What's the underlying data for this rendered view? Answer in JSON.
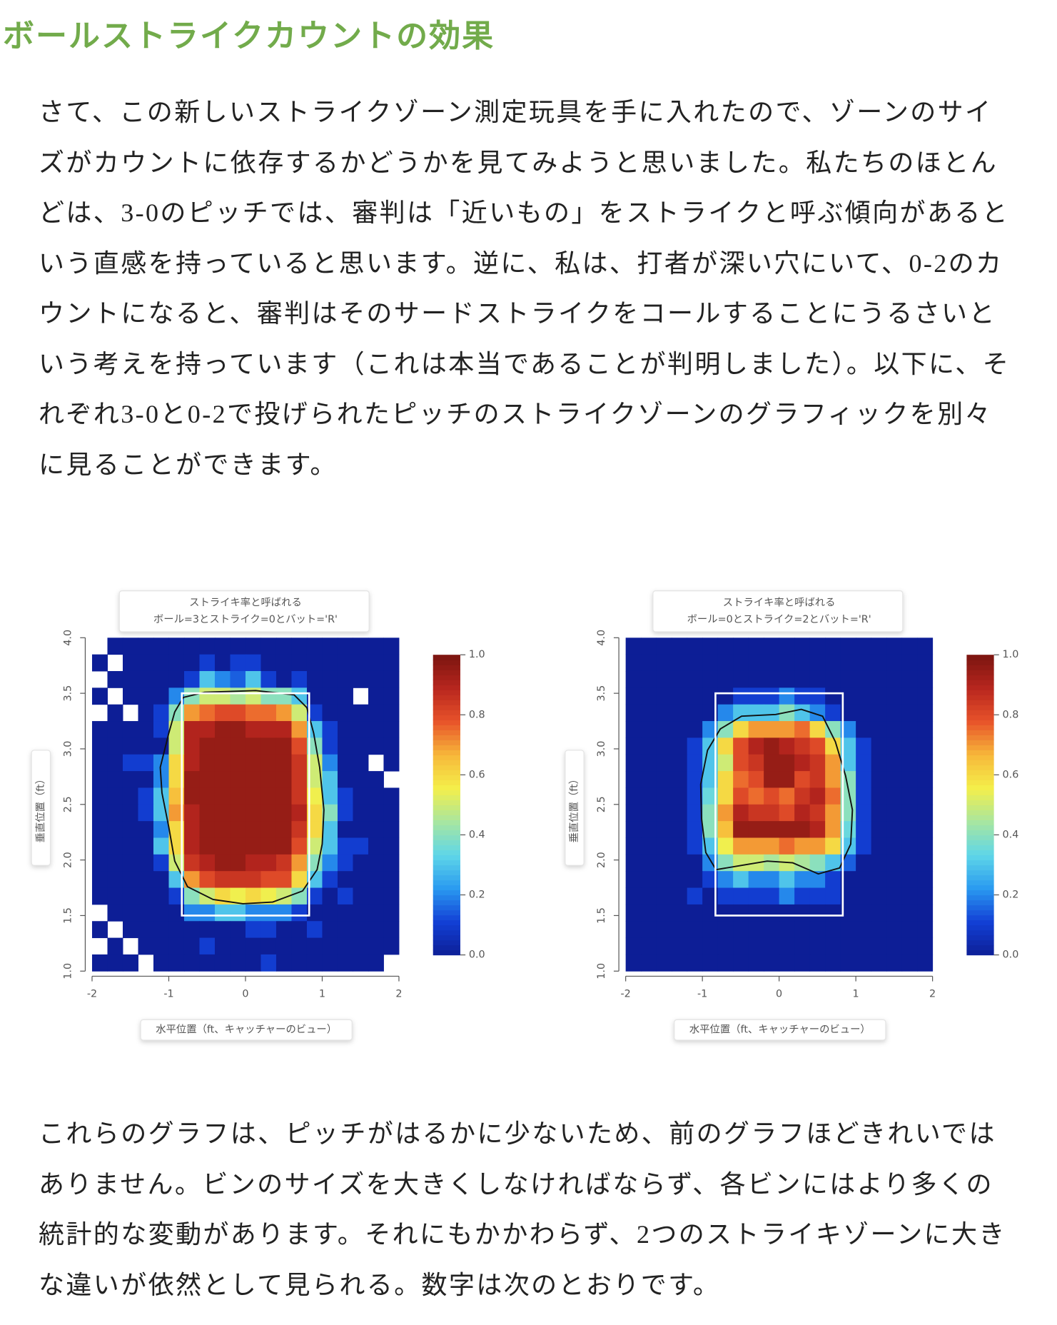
{
  "header": {
    "title": "ボールストライクカウントの効果"
  },
  "paragraphs": [
    "さて、この新しいストライクゾーン測定玩具を手に入れたので、ゾーンのサイズがカウントに依存するかどうかを見てみようと思いました。私たちのほとんどは、3-0のピッチでは、審判は「近いもの」をストライクと呼ぶ傾向があるという直感を持っていると思います。逆に、私は、打者が深い穴にいて、0-2のカウントになると、審判はそのサードストライクをコールすることにうるさいという考えを持っています（これは本当であることが判明しました）。以下に、それぞれ3-0と0-2で投げられたピッチのストライクゾーンのグラフィックを別々に見ることができます。",
    "これらのグラフは、ピッチがはるかに少ないため、前のグラフほどきれいではありません。ビンのサイズを大きくしなければならず、各ビンにはより多くの統計的な変動があります。それにもかかわらず、2つのストライキゾーンに大きな違いが依然として見られる。数字は次のとおりです。"
  ],
  "chart_data": [
    {
      "type": "heatmap",
      "title": "ストライキ率と呼ばれる",
      "subtitle": "ボール=3とストライク=0とバット='R'",
      "x_label": "水平位置（ft、キャッチャーのビュー）",
      "y_label": "垂直位置（ft）",
      "xlim": [
        -2,
        2
      ],
      "ylim": [
        1,
        4
      ],
      "xticks": [
        -2,
        -1,
        0,
        1,
        2
      ],
      "yticks": [
        {
          "value": 1,
          "label": "1.0"
        },
        1.5,
        {
          "value": 2,
          "label": "2.0"
        },
        2.5,
        {
          "value": 3,
          "label": "3.0"
        },
        3.5,
        {
          "value": 4,
          "label": "4.0"
        }
      ],
      "zlim": [
        0,
        1
      ],
      "zticks": [
        {
          "value": 0,
          "label": "0.0"
        },
        0.2,
        0.4,
        0.6,
        0.8,
        {
          "value": 1,
          "label": "1.0"
        }
      ],
      "colorscale": [
        "#0d1e96",
        "#1240d6",
        "#2a9af0",
        "#5fd6e8",
        "#a8e6a0",
        "#f4ef4a",
        "#f7b83a",
        "#e8532a",
        "#b8261e",
        "#7a1510"
      ],
      "strike_zone": {
        "x": [
          -0.83,
          0.83
        ],
        "y": [
          1.5,
          3.5
        ]
      },
      "z": [
        [
          null,
          0,
          0,
          0,
          0,
          0,
          0,
          0,
          0,
          0,
          0,
          0,
          0,
          0,
          0,
          0,
          0,
          0,
          0,
          0
        ],
        [
          0,
          null,
          0,
          0,
          0,
          0,
          0,
          0.1,
          0,
          0.1,
          0.1,
          0,
          0,
          0,
          0,
          0,
          0,
          0,
          0,
          0
        ],
        [
          null,
          0,
          0,
          0,
          0,
          0,
          0.1,
          0.3,
          0.2,
          0.15,
          0.3,
          0.1,
          0,
          0.1,
          0,
          0,
          0,
          0,
          0,
          0
        ],
        [
          0,
          null,
          0,
          0,
          0,
          0.2,
          0.4,
          0.5,
          0.5,
          0.45,
          0.5,
          0.4,
          0.4,
          0.3,
          0,
          0,
          0,
          null,
          0,
          0
        ],
        [
          null,
          0,
          null,
          0,
          0.1,
          0.4,
          0.7,
          0.75,
          0.8,
          0.8,
          0.75,
          0.75,
          0.7,
          0.5,
          0.1,
          0,
          0,
          0,
          0,
          0
        ],
        [
          0,
          0,
          0,
          0,
          0.1,
          0.5,
          0.9,
          0.9,
          0.95,
          0.95,
          0.9,
          0.9,
          0.9,
          0.7,
          0.3,
          0.1,
          0,
          0,
          0,
          0
        ],
        [
          0,
          0,
          0,
          0,
          0,
          0.5,
          0.9,
          0.95,
          0.95,
          0.95,
          0.95,
          0.95,
          0.95,
          0.8,
          0.4,
          0.1,
          0,
          0,
          0,
          0
        ],
        [
          0,
          0,
          0.1,
          0.1,
          0.2,
          0.6,
          0.9,
          0.95,
          0.95,
          0.95,
          0.95,
          0.95,
          0.95,
          0.85,
          0.5,
          0.2,
          0,
          0,
          null,
          0
        ],
        [
          0,
          0,
          0,
          0,
          0.2,
          0.6,
          0.95,
          0.95,
          0.95,
          0.95,
          0.95,
          0.95,
          0.95,
          0.85,
          0.5,
          0.3,
          0,
          0,
          0,
          null
        ],
        [
          0,
          0,
          0,
          0.1,
          0.3,
          0.65,
          0.95,
          0.95,
          0.95,
          0.95,
          0.95,
          0.95,
          0.95,
          0.85,
          0.55,
          0.3,
          0.1,
          0,
          0,
          0
        ],
        [
          0,
          0,
          0,
          0.1,
          0.3,
          0.7,
          0.9,
          0.95,
          0.95,
          0.95,
          0.95,
          0.95,
          0.95,
          0.9,
          0.6,
          0.4,
          0.1,
          0,
          0,
          0
        ],
        [
          0,
          0,
          0,
          0,
          0.2,
          0.6,
          0.9,
          0.95,
          0.95,
          0.95,
          0.95,
          0.95,
          0.95,
          0.85,
          0.6,
          0.3,
          0,
          0,
          0,
          0
        ],
        [
          0,
          0,
          0,
          0,
          0.3,
          0.6,
          0.9,
          0.95,
          0.95,
          0.95,
          0.95,
          0.95,
          0.95,
          0.8,
          0.5,
          0.3,
          0.1,
          0.1,
          0,
          0
        ],
        [
          0,
          0,
          0,
          0,
          0.1,
          0.5,
          0.85,
          0.9,
          0.95,
          0.95,
          0.9,
          0.9,
          0.85,
          0.7,
          0.4,
          0.2,
          0.1,
          0,
          0,
          0
        ],
        [
          0,
          0,
          0,
          0,
          0,
          0.3,
          0.7,
          0.8,
          0.85,
          0.85,
          0.85,
          0.8,
          0.8,
          0.6,
          0.3,
          0.1,
          0,
          0,
          0,
          0
        ],
        [
          0,
          0,
          0,
          0,
          0,
          0.1,
          0.4,
          0.5,
          0.6,
          0.55,
          0.6,
          0.55,
          0.5,
          0.4,
          0.1,
          0,
          0.1,
          0,
          0,
          0
        ],
        [
          null,
          0,
          0,
          0,
          0,
          0,
          0.2,
          0.2,
          0.3,
          0.3,
          0.2,
          0.2,
          0.2,
          0.1,
          0,
          0,
          0,
          0,
          0,
          0
        ],
        [
          0,
          null,
          0,
          0,
          0,
          0,
          0,
          0,
          0,
          0,
          0.1,
          0.1,
          0,
          0,
          0.1,
          0,
          0,
          0,
          0,
          0
        ],
        [
          null,
          0,
          null,
          0,
          0,
          0,
          0,
          0.1,
          0,
          0,
          0,
          0,
          0,
          0,
          0,
          0,
          0,
          0,
          0,
          0
        ],
        [
          0,
          0,
          0,
          null,
          0,
          0,
          0,
          0,
          0,
          0,
          0,
          0.1,
          0,
          0,
          0,
          0,
          0,
          0,
          0,
          null
        ]
      ]
    },
    {
      "type": "heatmap",
      "title": "ストライキ率と呼ばれる",
      "subtitle": "ボール=0とストライク=2とバット='R'",
      "x_label": "水平位置（ft、キャッチャーのビュー）",
      "y_label": "垂直位置（ft）",
      "xlim": [
        -2,
        2
      ],
      "ylim": [
        1,
        4
      ],
      "xticks": [
        -2,
        -1,
        0,
        1,
        2
      ],
      "yticks": [
        {
          "value": 1,
          "label": "1.0"
        },
        1.5,
        {
          "value": 2,
          "label": "2.0"
        },
        2.5,
        {
          "value": 3,
          "label": "3.0"
        },
        3.5,
        {
          "value": 4,
          "label": "4.0"
        }
      ],
      "zlim": [
        0,
        1
      ],
      "zticks": [
        {
          "value": 0,
          "label": "0.0"
        },
        0.2,
        0.4,
        0.6,
        0.8,
        {
          "value": 1,
          "label": "1.0"
        }
      ],
      "colorscale": [
        "#0d1e96",
        "#1240d6",
        "#2a9af0",
        "#5fd6e8",
        "#a8e6a0",
        "#f4ef4a",
        "#f7b83a",
        "#e8532a",
        "#b8261e",
        "#7a1510"
      ],
      "strike_zone": {
        "x": [
          -0.83,
          0.83
        ],
        "y": [
          1.5,
          3.5
        ]
      },
      "z": [
        [
          0,
          0,
          0,
          0,
          0,
          0,
          0,
          0,
          0,
          0,
          0,
          0,
          0,
          0,
          0,
          0,
          0,
          0,
          0,
          0
        ],
        [
          0,
          0,
          0,
          0,
          0,
          0,
          0,
          0,
          0,
          0,
          0,
          0,
          0,
          0,
          0,
          0,
          0,
          0,
          0,
          0
        ],
        [
          0,
          0,
          0,
          0,
          0,
          0,
          0,
          0,
          0,
          0,
          0,
          0,
          0,
          0,
          0,
          0,
          0,
          0,
          0,
          0
        ],
        [
          0,
          0,
          0,
          0,
          0,
          0,
          0,
          0.1,
          0.1,
          0.1,
          0.2,
          0.1,
          0.1,
          0,
          0,
          0,
          0,
          0,
          0,
          0
        ],
        [
          0,
          0,
          0,
          0,
          0,
          0,
          0.2,
          0.3,
          0.3,
          0.3,
          0.4,
          0.3,
          0.2,
          0.1,
          0,
          0,
          0,
          0,
          0,
          0
        ],
        [
          0,
          0,
          0,
          0,
          0,
          0.2,
          0.4,
          0.6,
          0.7,
          0.7,
          0.7,
          0.75,
          0.6,
          0.4,
          0.2,
          0,
          0,
          0,
          0,
          0
        ],
        [
          0,
          0,
          0,
          0,
          0.1,
          0.3,
          0.6,
          0.8,
          0.9,
          0.95,
          0.9,
          0.85,
          0.8,
          0.6,
          0.3,
          0.1,
          0,
          0,
          0,
          0
        ],
        [
          0,
          0,
          0,
          0,
          0.1,
          0.3,
          0.5,
          0.8,
          0.85,
          0.95,
          0.95,
          0.9,
          0.85,
          0.7,
          0.3,
          0.1,
          0,
          0,
          0,
          0
        ],
        [
          0,
          0,
          0,
          0,
          0.1,
          0.3,
          0.6,
          0.75,
          0.8,
          0.95,
          0.95,
          0.8,
          0.85,
          0.7,
          0.4,
          0.1,
          0,
          0,
          0,
          0
        ],
        [
          0,
          0,
          0,
          0,
          0.1,
          0.35,
          0.6,
          0.8,
          0.75,
          0.8,
          0.75,
          0.85,
          0.9,
          0.75,
          0.4,
          0.1,
          0,
          0,
          0,
          0
        ],
        [
          0,
          0,
          0,
          0,
          0.1,
          0.4,
          0.7,
          0.9,
          0.85,
          0.85,
          0.8,
          0.9,
          0.85,
          0.7,
          0.4,
          0.1,
          0,
          0,
          0,
          0
        ],
        [
          0,
          0,
          0,
          0,
          0.1,
          0.4,
          0.65,
          0.95,
          0.95,
          0.95,
          0.95,
          0.95,
          0.9,
          0.7,
          0.35,
          0.1,
          0,
          0,
          0,
          0
        ],
        [
          0,
          0,
          0,
          0,
          0.1,
          0.3,
          0.55,
          0.7,
          0.7,
          0.7,
          0.75,
          0.7,
          0.7,
          0.6,
          0.3,
          0.1,
          0,
          0,
          0,
          0
        ],
        [
          0,
          0,
          0,
          0,
          0,
          0.2,
          0.4,
          0.5,
          0.5,
          0.45,
          0.5,
          0.45,
          0.4,
          0.3,
          0.15,
          0,
          0,
          0,
          0,
          0
        ],
        [
          0,
          0,
          0,
          0,
          0,
          0.1,
          0.2,
          0.3,
          0.2,
          0.2,
          0.3,
          0.2,
          0.2,
          0.1,
          0,
          0,
          0,
          0,
          0,
          0
        ],
        [
          0,
          0,
          0,
          0,
          0.1,
          0,
          0.1,
          0.1,
          0.1,
          0.1,
          0.2,
          0.1,
          0.1,
          0.1,
          0,
          0,
          0,
          0,
          0,
          0
        ],
        [
          0,
          0,
          0,
          0,
          0,
          0,
          0,
          0,
          0,
          0,
          0,
          0,
          0,
          0,
          0,
          0,
          0,
          0,
          0,
          0
        ],
        [
          0,
          0,
          0,
          0,
          0,
          0,
          0,
          0,
          0,
          0,
          0,
          0,
          0,
          0,
          0,
          0,
          0,
          0,
          0,
          0
        ],
        [
          0,
          0,
          0,
          0,
          0,
          0,
          0,
          0,
          0,
          0,
          0,
          0,
          0,
          0,
          0,
          0,
          0,
          0,
          0,
          0
        ],
        [
          0,
          0,
          0,
          0,
          0,
          0,
          0,
          0,
          0,
          0,
          0,
          0,
          0,
          0,
          0,
          0,
          0,
          0,
          0,
          0
        ]
      ]
    }
  ]
}
